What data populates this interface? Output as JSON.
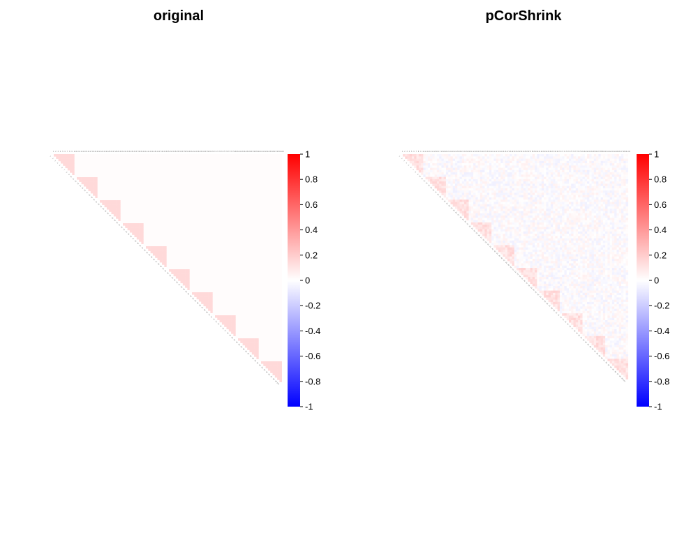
{
  "chart_data": [
    {
      "type": "heatmap",
      "title": "original",
      "layout": "upper-triangle",
      "n_variables": 100,
      "block_size": 10,
      "within_block_value": 0.15,
      "between_block_value": 0.01,
      "colorbar": {
        "ticks": [
          "1",
          "0.8",
          "0.6",
          "0.4",
          "0.2",
          "0",
          "-0.2",
          "-0.4",
          "-0.6",
          "-0.8",
          "-1"
        ],
        "range": [
          -1,
          1
        ],
        "colors": {
          "low": "#0000ff",
          "mid": "#ffffff",
          "high": "#ff0000"
        }
      }
    },
    {
      "type": "heatmap",
      "title": "pCorShrink",
      "layout": "upper-triangle",
      "n_variables": 100,
      "block_size": 10,
      "within_block_value": 0.12,
      "between_block_value": 0.0,
      "noise_level": 0.06,
      "colorbar": {
        "ticks": [
          "1",
          "0.8",
          "0.6",
          "0.4",
          "0.2",
          "0",
          "-0.2",
          "-0.4",
          "-0.6",
          "-0.8",
          "-1"
        ],
        "range": [
          -1,
          1
        ],
        "colors": {
          "low": "#0000ff",
          "mid": "#ffffff",
          "high": "#ff0000"
        }
      }
    }
  ]
}
